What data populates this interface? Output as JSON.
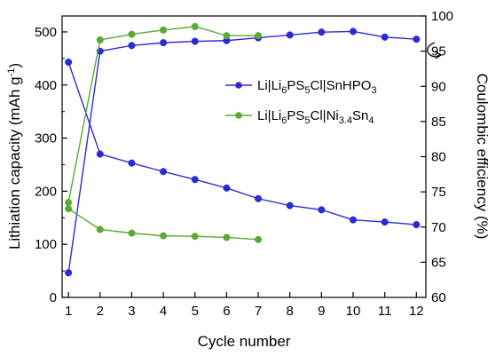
{
  "chart_data": {
    "type": "line",
    "x": [
      1,
      2,
      3,
      4,
      5,
      6,
      7,
      8,
      9,
      10,
      11,
      12
    ],
    "xlabel": "Cycle number",
    "xlim": [
      0.8,
      12.3
    ],
    "xticks": [
      1,
      2,
      3,
      4,
      5,
      6,
      7,
      8,
      9,
      10,
      11,
      12
    ],
    "ylabel": "Lithiation capacity (mAh g",
    "ylabel_sup": "-1",
    "ylabel_end": ")",
    "ylim": [
      0,
      530
    ],
    "yticks": [
      0,
      100,
      200,
      300,
      400,
      500
    ],
    "y2label": "Coulombic efficiency (%)",
    "y2lim": [
      60,
      100
    ],
    "y2ticks": [
      60,
      65,
      70,
      75,
      80,
      85,
      90,
      95,
      100
    ],
    "series": [
      {
        "name": "Li|Li6PS5Cl|SnHPO3",
        "legend": {
          "base": "Li|Li",
          "s1": "6",
          "m1": "PS",
          "s2": "5",
          "m2": "Cl|SnHPO",
          "s3": "3",
          "tail": ""
        },
        "color": "#2b2bd6",
        "axis": "left",
        "x": [
          1,
          2,
          3,
          4,
          5,
          6,
          7,
          8,
          9,
          10,
          11,
          12
        ],
        "values": [
          443,
          270,
          253,
          237,
          222,
          206,
          186,
          173,
          165,
          146,
          142,
          137
        ]
      },
      {
        "name": "Li|Li6PS5Cl|SnHPO3 CE",
        "color": "#2b2bd6",
        "axis": "right",
        "x": [
          1,
          2,
          3,
          4,
          5,
          6,
          7,
          8,
          9,
          10,
          11,
          12
        ],
        "values": [
          63.5,
          95.0,
          95.8,
          96.2,
          96.4,
          96.5,
          96.9,
          97.3,
          97.7,
          97.8,
          97.0,
          96.7
        ]
      },
      {
        "name": "Li|Li6PS5Cl|Ni3.4Sn4",
        "legend": {
          "base": "Li|Li",
          "s1": "6",
          "m1": "PS",
          "s2": "5",
          "m2": "Cl|Ni",
          "s3": "3.4",
          "tail": "Sn",
          "s4": "4"
        },
        "color": "#5aaa35",
        "axis": "left",
        "x": [
          1,
          2,
          3,
          4,
          5,
          6,
          7
        ],
        "values": [
          167,
          128,
          121,
          116,
          115,
          113,
          109
        ]
      },
      {
        "name": "Li|Li6PS5Cl|Ni3.4Sn4 CE",
        "color": "#5aaa35",
        "axis": "right",
        "x": [
          1,
          2,
          3,
          4,
          5,
          6,
          7
        ],
        "values": [
          73.5,
          96.6,
          97.4,
          98.0,
          98.5,
          97.2,
          97.2
        ]
      }
    ],
    "legend_position": "right-middle",
    "grid": false
  }
}
